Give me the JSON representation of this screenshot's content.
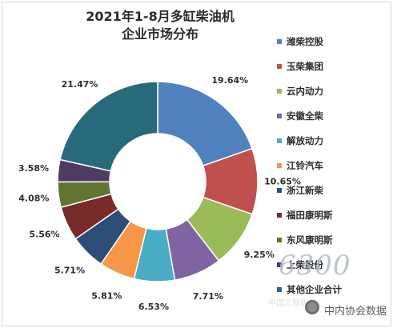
{
  "chart_data": {
    "type": "pie",
    "title": [
      "2021年1-8月多缸柴油机",
      "企业市场分布"
    ],
    "series": [
      {
        "name": "潍柴控股",
        "value": 19.64,
        "label": "19.64%",
        "color": "#4E81BD"
      },
      {
        "name": "玉柴集团",
        "value": 10.65,
        "label": "10.65%",
        "color": "#C0504D"
      },
      {
        "name": "云内动力",
        "value": 9.25,
        "label": "9.25%",
        "color": "#9BBB59"
      },
      {
        "name": "安徽全柴",
        "value": 7.71,
        "label": "7.71%",
        "color": "#8064A2"
      },
      {
        "name": "解放动力",
        "value": 6.53,
        "label": "6.53%",
        "color": "#4BACC6"
      },
      {
        "name": "江铃汽车",
        "value": 5.81,
        "label": "5.81%",
        "color": "#F79646"
      },
      {
        "name": "浙江新柴",
        "value": 5.71,
        "label": "5.71%",
        "color": "#2C4D75"
      },
      {
        "name": "福田康明斯",
        "value": 5.56,
        "label": "5.56%",
        "color": "#772C2A"
      },
      {
        "name": "东风康明斯",
        "value": 4.08,
        "label": "4.08%",
        "color": "#5F7530"
      },
      {
        "name": "上柴股份",
        "value": 3.58,
        "label": "3.58%",
        "color": "#4D3B62"
      },
      {
        "name": "其他企业合计",
        "value": 21.47,
        "label": "21.47%",
        "color": "#276A7C"
      }
    ],
    "legend_position": "right"
  },
  "watermark": {
    "mark": "6300",
    "sub": "中国工程机械",
    "brand": "中内协会数据"
  }
}
